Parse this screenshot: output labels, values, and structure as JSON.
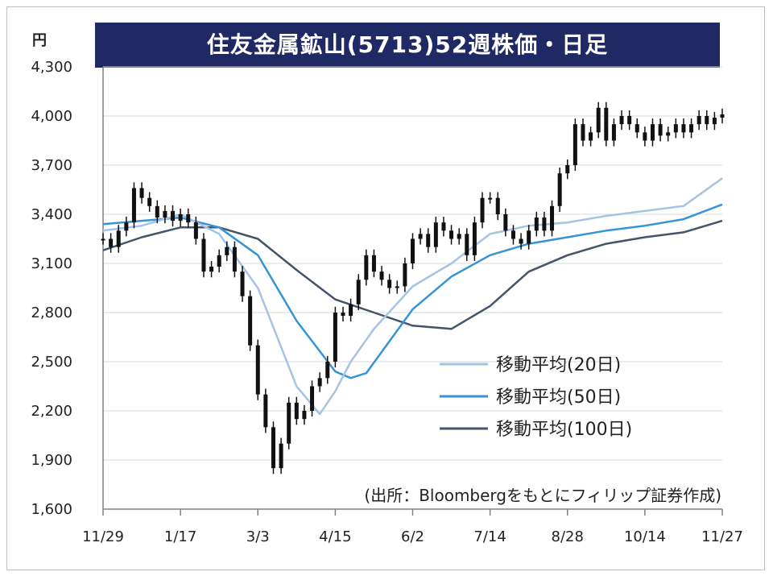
{
  "chart_data": {
    "type": "line",
    "title": "住友金属鉱山(5713)52週株価・日足",
    "unit": "円",
    "note": "(出所：Bloombergをもとにフィリップ証券作成)",
    "x_ticks": [
      "11/29",
      "1/17",
      "3/3",
      "4/15",
      "6/2",
      "7/14",
      "8/28",
      "10/14",
      "11/27"
    ],
    "ylim": [
      1600,
      4300
    ],
    "y_ticks": [
      1600,
      1900,
      2200,
      2500,
      2800,
      3100,
      3400,
      3700,
      4000,
      4300
    ],
    "y_tick_labels": [
      "1,600",
      "1,900",
      "2,200",
      "2,500",
      "2,800",
      "3,100",
      "3,400",
      "3,700",
      "4,000",
      "4,300"
    ],
    "grid": "horizontal",
    "legend_position": "bottom-right",
    "series": [
      {
        "name": "株価",
        "color": "#111111",
        "style": "candlestick",
        "x": [
          0,
          0.1,
          0.2,
          0.3,
          0.4,
          0.5,
          0.6,
          0.7,
          0.8,
          0.9,
          1,
          1.1,
          1.2,
          1.3,
          1.4,
          1.5,
          1.6,
          1.7,
          1.8,
          1.9,
          2,
          2.1,
          2.2,
          2.3,
          2.4,
          2.5,
          2.6,
          2.7,
          2.8,
          2.9,
          3,
          3.1,
          3.2,
          3.3,
          3.4,
          3.5,
          3.6,
          3.7,
          3.8,
          3.9,
          4,
          4.1,
          4.2,
          4.3,
          4.4,
          4.5,
          4.6,
          4.7,
          4.8,
          4.9,
          5,
          5.1,
          5.2,
          5.3,
          5.4,
          5.5,
          5.6,
          5.7,
          5.8,
          5.9,
          6,
          6.1,
          6.2,
          6.3,
          6.4,
          6.5,
          6.6,
          6.7,
          6.8,
          6.9,
          7,
          7.1,
          7.2,
          7.3,
          7.4,
          7.5,
          7.6,
          7.7,
          7.8,
          7.9,
          8
        ],
        "values": [
          3250,
          3200,
          3300,
          3350,
          3560,
          3500,
          3450,
          3380,
          3420,
          3360,
          3400,
          3350,
          3250,
          3050,
          3080,
          3150,
          3200,
          3050,
          2900,
          2600,
          2300,
          2100,
          1850,
          2000,
          2250,
          2150,
          2200,
          2350,
          2400,
          2500,
          2800,
          2780,
          2850,
          3000,
          3150,
          3050,
          3000,
          2950,
          2960,
          3100,
          3250,
          3280,
          3200,
          3350,
          3300,
          3250,
          3280,
          3150,
          3350,
          3500,
          3500,
          3400,
          3300,
          3250,
          3220,
          3300,
          3380,
          3300,
          3450,
          3650,
          3700,
          3950,
          3850,
          3900,
          4050,
          3850,
          3950,
          4000,
          3950,
          3900,
          3850,
          3950,
          3880,
          3900,
          3950,
          3900,
          3950,
          4000,
          3950,
          3990,
          4010
        ]
      },
      {
        "name": "移動平均(20日)",
        "color": "#a6c3e6",
        "x": [
          0,
          0.5,
          1,
          1.5,
          2,
          2.5,
          2.8,
          3,
          3.2,
          3.5,
          4,
          4.5,
          5,
          5.5,
          6,
          6.5,
          7,
          7.5,
          8
        ],
        "values": [
          3300,
          3330,
          3400,
          3280,
          2950,
          2350,
          2180,
          2320,
          2500,
          2700,
          2960,
          3100,
          3280,
          3330,
          3350,
          3390,
          3420,
          3450,
          3620
        ]
      },
      {
        "name": "移動平均(50日)",
        "color": "#3494d6",
        "x": [
          0,
          0.5,
          1,
          1.5,
          2,
          2.5,
          3,
          3.2,
          3.4,
          3.6,
          4,
          4.5,
          5,
          5.5,
          6,
          6.5,
          7,
          7.5,
          8
        ],
        "values": [
          3340,
          3360,
          3380,
          3320,
          3150,
          2750,
          2440,
          2400,
          2430,
          2560,
          2820,
          3020,
          3150,
          3220,
          3260,
          3300,
          3330,
          3370,
          3460
        ]
      },
      {
        "name": "移動平均(100日)",
        "color": "#44546a",
        "x": [
          0,
          0.5,
          1,
          1.5,
          2,
          2.5,
          3,
          3.5,
          4,
          4.5,
          5,
          5.5,
          6,
          6.5,
          7,
          7.5,
          8
        ],
        "values": [
          3180,
          3260,
          3320,
          3320,
          3250,
          3060,
          2880,
          2800,
          2720,
          2700,
          2840,
          3050,
          3150,
          3220,
          3260,
          3290,
          3360
        ]
      }
    ]
  }
}
